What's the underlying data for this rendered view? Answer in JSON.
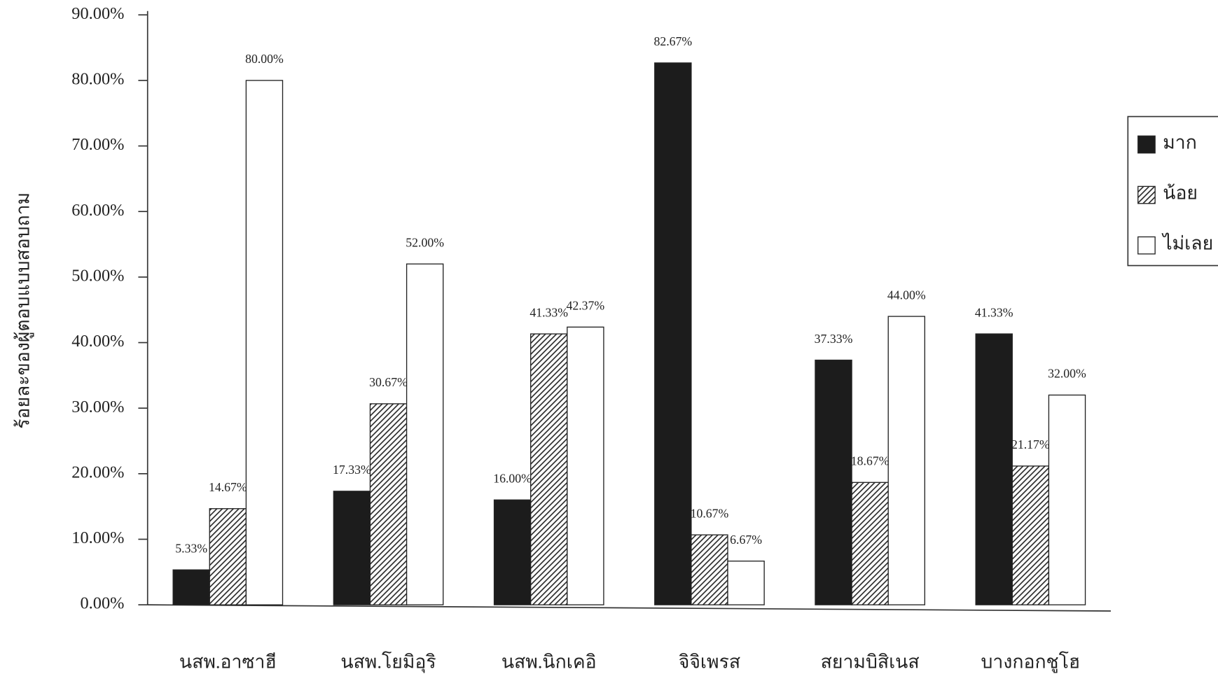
{
  "chart_data": {
    "type": "bar",
    "y_label": "ร้อยละของผู้ตอบแบบสอบถาม",
    "categories": [
      "นสพ.อาซาฮี",
      "นสพ.โยมิอุริ",
      "นสพ.นิกเคอิ",
      "จิจิเพรส",
      "สยามบิสิเนส",
      "บางกอกชูโฮ"
    ],
    "series": [
      {
        "name": "มาก",
        "color": "#1c1c1c",
        "values": [
          5.33,
          17.33,
          16.0,
          82.67,
          37.33,
          41.33
        ],
        "value_labels": [
          "5.33%",
          "17.33%",
          "16.00%",
          "82.67%",
          "37.33%",
          "41.33%"
        ]
      },
      {
        "name": "น้อย",
        "color": "#2a2a2a",
        "hatch": true,
        "values": [
          14.67,
          30.67,
          41.33,
          10.67,
          18.67,
          21.17
        ],
        "value_labels": [
          "14.67%",
          "30.67%",
          "41.33%",
          "10.67%",
          "18.67%",
          "21.17%"
        ]
      },
      {
        "name": "ไม่เลย",
        "color": "#ffffff",
        "values": [
          80.0,
          52.0,
          42.37,
          6.67,
          44.0,
          32.0
        ],
        "value_labels": [
          "80.00%",
          "52.00%",
          "42.37%",
          "6.67%",
          "44.00%",
          "32.00%"
        ]
      }
    ],
    "ylim": [
      0,
      90
    ],
    "yticks": [
      {
        "value": 0,
        "label": "0.00%"
      },
      {
        "value": 10,
        "label": "10.00%"
      },
      {
        "value": 20,
        "label": "20.00%"
      },
      {
        "value": 30,
        "label": "30.00%"
      },
      {
        "value": 40,
        "label": "40.00%"
      },
      {
        "value": 50,
        "label": "50.00%"
      },
      {
        "value": 60,
        "label": "60.00%"
      },
      {
        "value": 70,
        "label": "70.00%"
      },
      {
        "value": 80,
        "label": "80.00%"
      },
      {
        "value": 90,
        "label": "90.00%"
      }
    ],
    "grid": false,
    "legend_position": "right"
  }
}
